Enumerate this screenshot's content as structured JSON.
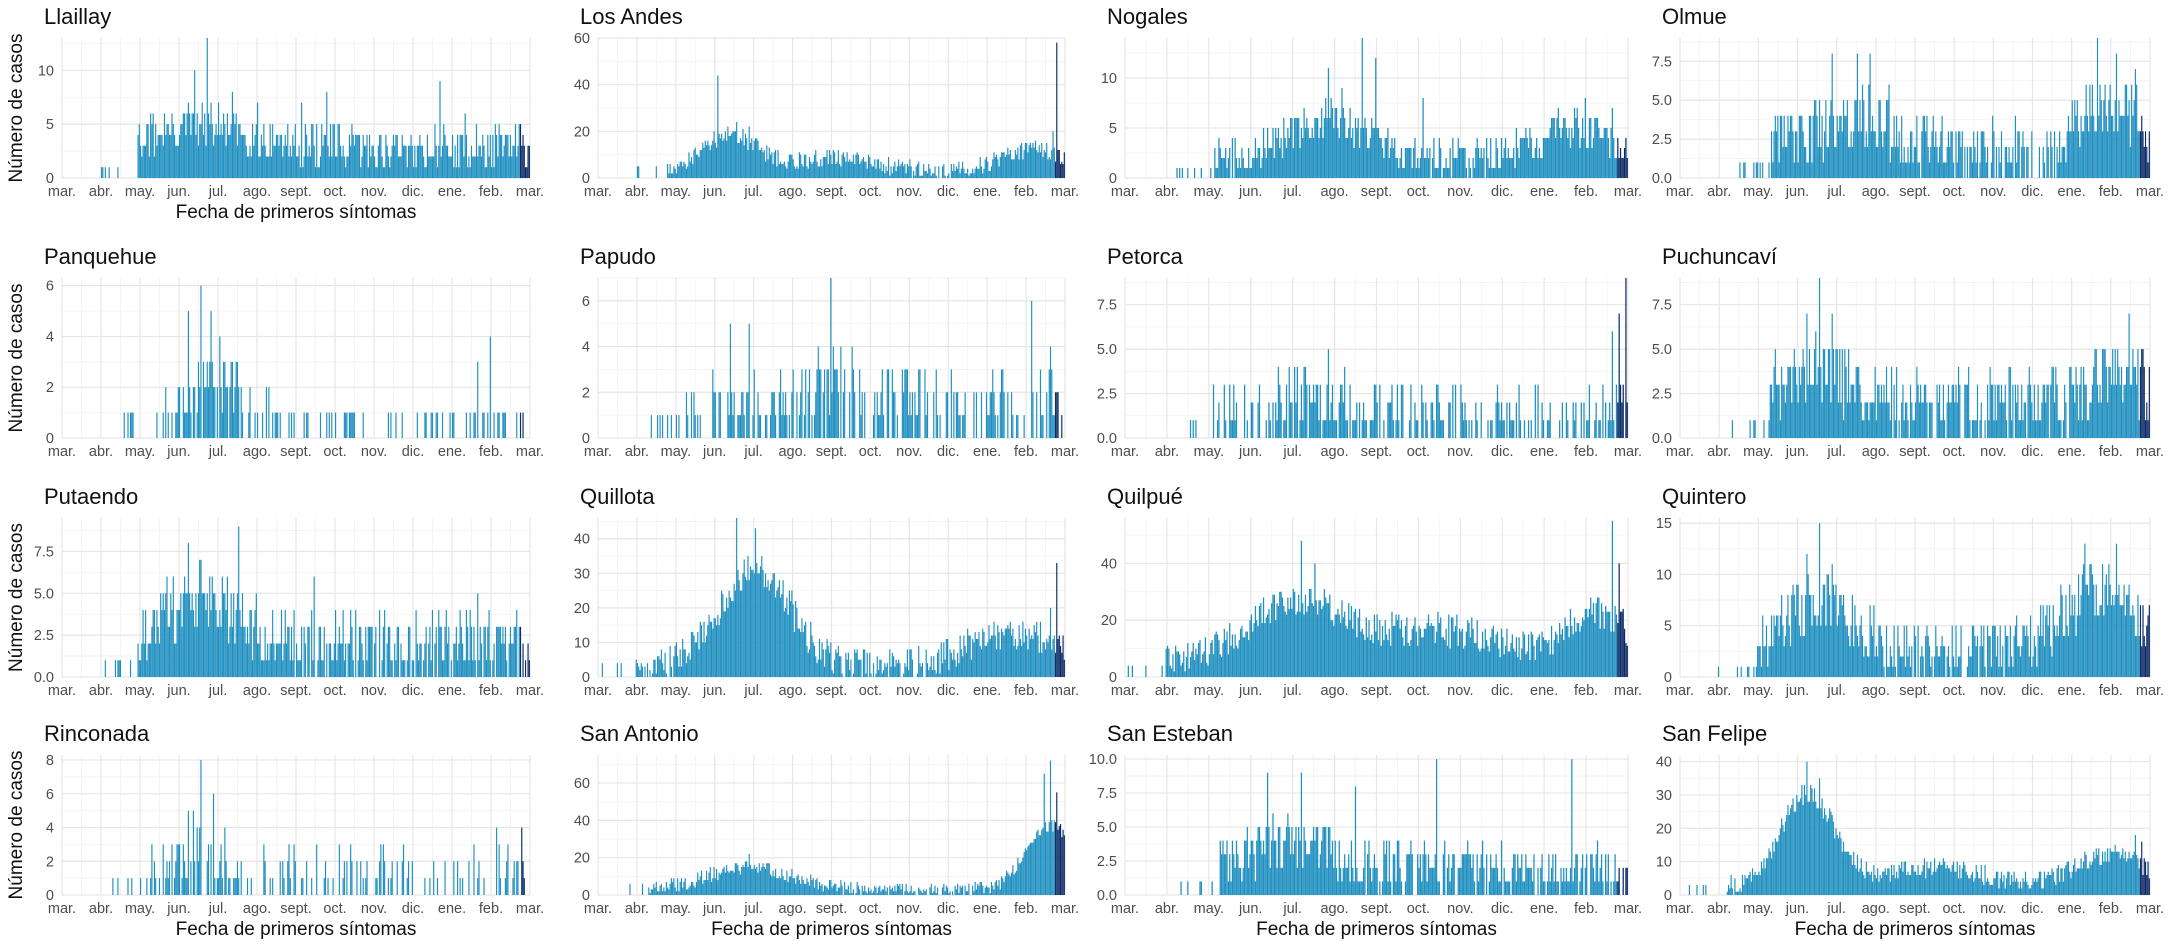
{
  "figure": {
    "x_axis_label": "Fecha de primeros síntomas",
    "y_axis_label": "Número de casos",
    "colors": {
      "bar": "#1f8fc0",
      "recent_bar": "#0b2a66",
      "grid": "#e6e6e6"
    }
  },
  "chart_data": [
    {
      "type": "bar",
      "title": "Llaillay",
      "xlabel": "Fecha de primeros síntomas",
      "ylabel": "Número de casos",
      "ylim": [
        0,
        13
      ],
      "yticks": [
        0,
        5,
        10
      ],
      "ytick_labels": [
        "0",
        "5",
        "10"
      ],
      "xticks": [
        "mar.",
        "abr.",
        "may.",
        "jun.",
        "jul.",
        "ago.",
        "sept.",
        "oct.",
        "nov.",
        "dic.",
        "ene.",
        "feb.",
        "mar."
      ],
      "start_day": 0,
      "end_day": 372,
      "onset_day": 60,
      "base": 2,
      "jitter": 2,
      "waves": [
        {
          "peak": 110,
          "width": 55,
          "amp": 2
        }
      ],
      "spikes": [
        [
          115,
          13
        ],
        [
          105,
          10
        ],
        [
          100,
          7
        ],
        [
          135,
          8
        ],
        [
          155,
          7
        ],
        [
          190,
          7
        ],
        [
          210,
          8
        ],
        [
          300,
          9
        ],
        [
          320,
          6
        ],
        [
          360,
          5
        ]
      ]
    },
    {
      "type": "bar",
      "title": "Los Andes",
      "xlabel": "",
      "ylabel": "",
      "ylim": [
        0,
        60
      ],
      "yticks": [
        0,
        20,
        40,
        60
      ],
      "ytick_labels": [
        "0",
        "20",
        "40",
        "60"
      ],
      "xticks": [
        "mar.",
        "abr.",
        "may.",
        "jun.",
        "jul.",
        "ago.",
        "sept.",
        "oct.",
        "nov.",
        "dic.",
        "ene.",
        "feb.",
        "mar."
      ],
      "start_day": 0,
      "end_day": 372,
      "onset_day": 55,
      "base": 1,
      "jitter": 4,
      "waves": [
        {
          "peak": 105,
          "width": 32,
          "amp": 16
        },
        {
          "peak": 190,
          "width": 45,
          "amp": 6
        },
        {
          "peak": 345,
          "width": 35,
          "amp": 10
        }
      ],
      "spikes": [
        [
          95,
          44
        ],
        [
          110,
          24
        ],
        [
          120,
          22
        ],
        [
          365,
          58
        ],
        [
          362,
          20
        ]
      ]
    },
    {
      "type": "bar",
      "title": "Nogales",
      "xlabel": "",
      "ylabel": "",
      "ylim": [
        0,
        14
      ],
      "yticks": [
        0,
        5,
        10
      ],
      "ytick_labels": [
        "0",
        "5",
        "10"
      ],
      "xticks": [
        "mar.",
        "abr.",
        "may.",
        "jun.",
        "jul.",
        "ago.",
        "sept.",
        "oct.",
        "nov.",
        "dic.",
        "ene.",
        "feb.",
        "mar."
      ],
      "start_day": 0,
      "end_day": 372,
      "onset_day": 65,
      "base": 1,
      "jitter": 2,
      "waves": [
        {
          "peak": 150,
          "width": 45,
          "amp": 4
        },
        {
          "peak": 330,
          "width": 40,
          "amp": 3
        }
      ],
      "spikes": [
        [
          175,
          14
        ],
        [
          150,
          11
        ],
        [
          160,
          9
        ],
        [
          185,
          12
        ],
        [
          220,
          8
        ],
        [
          340,
          8
        ],
        [
          360,
          7
        ]
      ]
    },
    {
      "type": "bar",
      "title": "Olmue",
      "xlabel": "",
      "ylabel": "",
      "ylim": [
        0,
        9
      ],
      "yticks": [
        0,
        2.5,
        5,
        7.5
      ],
      "ytick_labels": [
        "0.0",
        "2.5",
        "5.0",
        "7.5"
      ],
      "xticks": [
        "mar.",
        "abr.",
        "may.",
        "jun.",
        "jul.",
        "ago.",
        "sept.",
        "oct.",
        "nov.",
        "dic.",
        "ene.",
        "feb.",
        "mar."
      ],
      "start_day": 0,
      "end_day": 372,
      "onset_day": 70,
      "base": 1,
      "jitter": 2,
      "waves": [
        {
          "peak": 140,
          "width": 45,
          "amp": 2
        },
        {
          "peak": 340,
          "width": 30,
          "amp": 3
        }
      ],
      "spikes": [
        [
          120,
          8
        ],
        [
          140,
          8
        ],
        [
          150,
          8
        ],
        [
          165,
          6
        ],
        [
          330,
          9
        ],
        [
          345,
          8
        ],
        [
          360,
          7
        ]
      ]
    },
    {
      "type": "bar",
      "title": "Panquehue",
      "xlabel": "",
      "ylabel": "Número de casos",
      "ylim": [
        0,
        6.3
      ],
      "yticks": [
        0,
        2,
        4,
        6
      ],
      "ytick_labels": [
        "0",
        "2",
        "4",
        "6"
      ],
      "xticks": [
        "mar.",
        "abr.",
        "may.",
        "jun.",
        "jul.",
        "ago.",
        "sept.",
        "oct.",
        "nov.",
        "dic.",
        "ene.",
        "feb.",
        "mar."
      ],
      "start_day": 0,
      "end_day": 372,
      "onset_day": 75,
      "base": 0,
      "jitter": 1,
      "sparse": 0.35,
      "waves": [
        {
          "peak": 120,
          "width": 30,
          "amp": 2
        }
      ],
      "spikes": [
        [
          110,
          6
        ],
        [
          118,
          5
        ],
        [
          100,
          5
        ],
        [
          125,
          4
        ],
        [
          340,
          4
        ],
        [
          330,
          3
        ]
      ]
    },
    {
      "type": "bar",
      "title": "Papudo",
      "xlabel": "",
      "ylabel": "",
      "ylim": [
        0,
        7
      ],
      "yticks": [
        0,
        2,
        4,
        6
      ],
      "ytick_labels": [
        "0",
        "2",
        "4",
        "6"
      ],
      "xticks": [
        "mar.",
        "abr.",
        "may.",
        "jun.",
        "jul.",
        "ago.",
        "sept.",
        "oct.",
        "nov.",
        "dic.",
        "ene.",
        "feb.",
        "mar."
      ],
      "start_day": 0,
      "end_day": 372,
      "onset_day": 70,
      "base": 0,
      "jitter": 2,
      "sparse": 0.2,
      "waves": [
        {
          "peak": 180,
          "width": 70,
          "amp": 1
        }
      ],
      "spikes": [
        [
          185,
          7
        ],
        [
          105,
          5
        ],
        [
          120,
          5
        ],
        [
          345,
          6
        ],
        [
          360,
          4
        ]
      ]
    },
    {
      "type": "bar",
      "title": "Petorca",
      "xlabel": "",
      "ylabel": "",
      "ylim": [
        0,
        9
      ],
      "yticks": [
        0,
        2.5,
        5,
        7.5
      ],
      "ytick_labels": [
        "0.0",
        "2.5",
        "5.0",
        "7.5"
      ],
      "xticks": [
        "mar.",
        "abr.",
        "may.",
        "jun.",
        "jul.",
        "ago.",
        "sept.",
        "oct.",
        "nov.",
        "dic.",
        "ene.",
        "feb.",
        "mar."
      ],
      "start_day": 0,
      "end_day": 372,
      "onset_day": 65,
      "base": 0,
      "jitter": 2,
      "sparse": 0.15,
      "waves": [
        {
          "peak": 140,
          "width": 60,
          "amp": 1.5
        }
      ],
      "spikes": [
        [
          370,
          9
        ],
        [
          365,
          7
        ],
        [
          150,
          5
        ],
        [
          360,
          6
        ]
      ]
    },
    {
      "type": "bar",
      "title": "Puchuncaví",
      "xlabel": "",
      "ylabel": "",
      "ylim": [
        0,
        9
      ],
      "yticks": [
        0,
        2.5,
        5,
        7.5
      ],
      "ytick_labels": [
        "0.0",
        "2.5",
        "5.0",
        "7.5"
      ],
      "xticks": [
        "mar.",
        "abr.",
        "may.",
        "jun.",
        "jul.",
        "ago.",
        "sept.",
        "oct.",
        "nov.",
        "dic.",
        "ene.",
        "feb.",
        "mar."
      ],
      "start_day": 0,
      "end_day": 372,
      "onset_day": 70,
      "base": 1,
      "jitter": 2,
      "waves": [
        {
          "peak": 110,
          "width": 40,
          "amp": 2
        },
        {
          "peak": 345,
          "width": 30,
          "amp": 2
        }
      ],
      "spikes": [
        [
          110,
          9
        ],
        [
          100,
          7
        ],
        [
          120,
          7
        ],
        [
          355,
          7
        ],
        [
          365,
          5
        ]
      ]
    },
    {
      "type": "bar",
      "title": "Putaendo",
      "xlabel": "",
      "ylabel": "Número de casos",
      "ylim": [
        0,
        9.5
      ],
      "yticks": [
        0,
        2.5,
        5,
        7.5
      ],
      "ytick_labels": [
        "0.0",
        "2.5",
        "5.0",
        "7.5"
      ],
      "xticks": [
        "mar.",
        "abr.",
        "may.",
        "jun.",
        "jul.",
        "ago.",
        "sept.",
        "oct.",
        "nov.",
        "dic.",
        "ene.",
        "feb.",
        "mar."
      ],
      "start_day": 0,
      "end_day": 372,
      "onset_day": 60,
      "base": 1,
      "jitter": 2,
      "waves": [
        {
          "peak": 110,
          "width": 40,
          "amp": 3
        }
      ],
      "spikes": [
        [
          140,
          9
        ],
        [
          100,
          8
        ],
        [
          110,
          7
        ],
        [
          200,
          6
        ],
        [
          330,
          5
        ]
      ]
    },
    {
      "type": "bar",
      "title": "Quillota",
      "xlabel": "",
      "ylabel": "",
      "ylim": [
        0,
        46
      ],
      "yticks": [
        0,
        10,
        20,
        30,
        40
      ],
      "ytick_labels": [
        "0",
        "10",
        "20",
        "30",
        "40"
      ],
      "xticks": [
        "mar.",
        "abr.",
        "may.",
        "jun.",
        "jul.",
        "ago.",
        "sept.",
        "oct.",
        "nov.",
        "dic.",
        "ene.",
        "feb.",
        "mar."
      ],
      "start_day": 0,
      "end_day": 372,
      "onset_day": 30,
      "base": 1,
      "jitter": 5,
      "waves": [
        {
          "peak": 125,
          "width": 40,
          "amp": 28
        },
        {
          "peak": 330,
          "width": 50,
          "amp": 10
        }
      ],
      "spikes": [
        [
          110,
          46
        ],
        [
          125,
          43
        ],
        [
          365,
          33
        ],
        [
          360,
          20
        ]
      ]
    },
    {
      "type": "bar",
      "title": "Quilpué",
      "xlabel": "",
      "ylabel": "",
      "ylim": [
        0,
        56
      ],
      "yticks": [
        0,
        20,
        40
      ],
      "ytick_labels": [
        "0",
        "20",
        "40"
      ],
      "xticks": [
        "mar.",
        "abr.",
        "may.",
        "jun.",
        "jul.",
        "ago.",
        "sept.",
        "oct.",
        "nov.",
        "dic.",
        "ene.",
        "feb.",
        "mar."
      ],
      "start_day": 0,
      "end_day": 372,
      "onset_day": 30,
      "base": 2,
      "jitter": 6,
      "waves": [
        {
          "peak": 125,
          "width": 50,
          "amp": 22
        },
        {
          "peak": 230,
          "width": 70,
          "amp": 12
        },
        {
          "peak": 350,
          "width": 35,
          "amp": 18
        }
      ],
      "spikes": [
        [
          130,
          48
        ],
        [
          140,
          40
        ],
        [
          360,
          55
        ],
        [
          365,
          40
        ]
      ]
    },
    {
      "type": "bar",
      "title": "Quintero",
      "xlabel": "",
      "ylabel": "",
      "ylim": [
        0,
        15.5
      ],
      "yticks": [
        0,
        5,
        10,
        15
      ],
      "ytick_labels": [
        "0",
        "5",
        "10",
        "15"
      ],
      "xticks": [
        "mar.",
        "abr.",
        "may.",
        "jun.",
        "jul.",
        "ago.",
        "sept.",
        "oct.",
        "nov.",
        "dic.",
        "ene.",
        "feb.",
        "mar."
      ],
      "start_day": 0,
      "end_day": 372,
      "onset_day": 60,
      "base": 1,
      "jitter": 3,
      "waves": [
        {
          "peak": 110,
          "width": 40,
          "amp": 5
        },
        {
          "peak": 330,
          "width": 45,
          "amp": 6
        }
      ],
      "spikes": [
        [
          110,
          15
        ],
        [
          100,
          12
        ],
        [
          120,
          11
        ],
        [
          320,
          13
        ],
        [
          345,
          13
        ]
      ]
    },
    {
      "type": "bar",
      "title": "Rinconada",
      "xlabel": "Fecha de primeros síntomas",
      "ylabel": "Número de casos",
      "ylim": [
        0,
        8.3
      ],
      "yticks": [
        0,
        2,
        4,
        6,
        8
      ],
      "ytick_labels": [
        "0",
        "2",
        "4",
        "6",
        "8"
      ],
      "xticks": [
        "mar.",
        "abr.",
        "may.",
        "jun.",
        "jul.",
        "ago.",
        "sept.",
        "oct.",
        "nov.",
        "dic.",
        "ene.",
        "feb.",
        "mar."
      ],
      "start_day": 0,
      "end_day": 372,
      "onset_day": 70,
      "base": 0,
      "jitter": 2,
      "sparse": 0.25,
      "waves": [
        {
          "peak": 110,
          "width": 35,
          "amp": 2
        }
      ],
      "spikes": [
        [
          110,
          8
        ],
        [
          100,
          5
        ],
        [
          120,
          6
        ],
        [
          345,
          4
        ],
        [
          365,
          4
        ]
      ]
    },
    {
      "type": "bar",
      "title": "San Antonio",
      "xlabel": "Fecha de primeros síntomas",
      "ylabel": "",
      "ylim": [
        0,
        75
      ],
      "yticks": [
        0,
        20,
        40,
        60
      ],
      "ytick_labels": [
        "0",
        "20",
        "40",
        "60"
      ],
      "xticks": [
        "mar.",
        "abr.",
        "may.",
        "jun.",
        "jul.",
        "ago.",
        "sept.",
        "oct.",
        "nov.",
        "dic.",
        "ene.",
        "feb.",
        "mar."
      ],
      "start_day": 0,
      "end_day": 372,
      "onset_day": 40,
      "base": 1,
      "jitter": 4,
      "waves": [
        {
          "peak": 120,
          "width": 50,
          "amp": 12
        },
        {
          "peak": 360,
          "width": 28,
          "amp": 35
        }
      ],
      "spikes": [
        [
          120,
          22
        ],
        [
          360,
          72
        ],
        [
          355,
          65
        ],
        [
          365,
          55
        ]
      ]
    },
    {
      "type": "bar",
      "title": "San Esteban",
      "xlabel": "Fecha de primeros síntomas",
      "ylabel": "",
      "ylim": [
        0,
        10.3
      ],
      "yticks": [
        0,
        2.5,
        5,
        7.5,
        10
      ],
      "ytick_labels": [
        "0.0",
        "2.5",
        "5.0",
        "7.5",
        "10.0"
      ],
      "xticks": [
        "mar.",
        "abr.",
        "may.",
        "jun.",
        "jul.",
        "ago.",
        "sept.",
        "oct.",
        "nov.",
        "dic.",
        "ene.",
        "feb.",
        "mar."
      ],
      "start_day": 0,
      "end_day": 372,
      "onset_day": 70,
      "base": 1,
      "jitter": 2,
      "waves": [
        {
          "peak": 120,
          "width": 50,
          "amp": 2
        }
      ],
      "spikes": [
        [
          230,
          10
        ],
        [
          330,
          10
        ],
        [
          105,
          9
        ],
        [
          130,
          9
        ],
        [
          170,
          8
        ]
      ]
    },
    {
      "type": "bar",
      "title": "San Felipe",
      "xlabel": "Fecha de primeros síntomas",
      "ylabel": "",
      "ylim": [
        0,
        42
      ],
      "yticks": [
        0,
        10,
        20,
        30,
        40
      ],
      "ytick_labels": [
        "0",
        "10",
        "20",
        "30",
        "40"
      ],
      "xticks": [
        "mar.",
        "abr.",
        "may.",
        "jun.",
        "jul.",
        "ago.",
        "sept.",
        "oct.",
        "nov.",
        "dic.",
        "ene.",
        "feb.",
        "mar."
      ],
      "start_day": 0,
      "end_day": 372,
      "onset_day": 35,
      "base": 1,
      "jitter": 3,
      "waves": [
        {
          "peak": 100,
          "width": 30,
          "amp": 28
        },
        {
          "peak": 200,
          "width": 60,
          "amp": 6
        },
        {
          "peak": 340,
          "width": 40,
          "amp": 10
        }
      ],
      "spikes": [
        [
          100,
          40
        ],
        [
          110,
          35
        ],
        [
          360,
          18
        ],
        [
          365,
          16
        ]
      ]
    }
  ]
}
